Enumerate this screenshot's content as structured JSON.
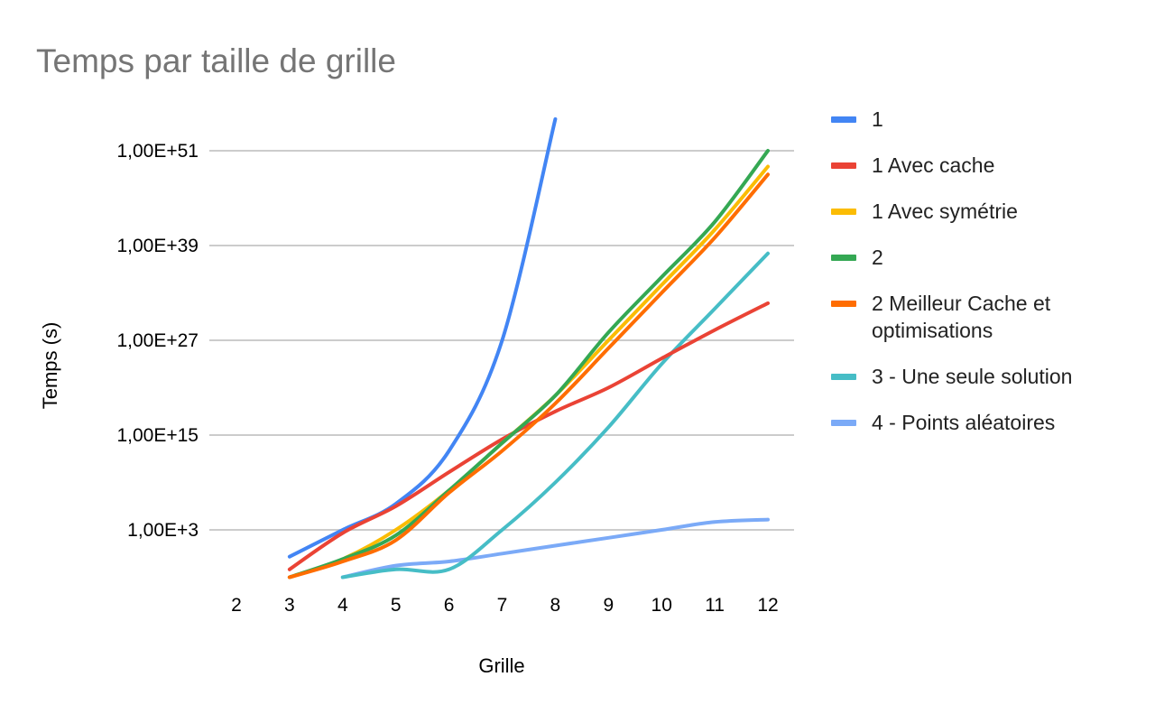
{
  "chart_data": {
    "type": "line",
    "title": "Temps par taille de grille",
    "xlabel": "Grille",
    "ylabel": "Temps (s)",
    "y_scale": "log",
    "categories": [
      "2",
      "3",
      "4",
      "5",
      "6",
      "7",
      "8",
      "9",
      "10",
      "11",
      "12"
    ],
    "y_ticks": [
      {
        "value": 1000.0,
        "label": "1,00E+3"
      },
      {
        "value": 1000000000000000.0,
        "label": "1,00E+15"
      },
      {
        "value": 1e+27,
        "label": "1,00E+27"
      },
      {
        "value": 1e+39,
        "label": "1,00E+39"
      },
      {
        "value": 1e+51,
        "label": "1,00E+51"
      }
    ],
    "grid": true,
    "legend_position": "right",
    "series": [
      {
        "name": "1",
        "color": "#4285f4",
        "values": [
          null,
          0.4,
          1000.0,
          2000000.0,
          10000000000000.0,
          1e+27,
          1e+55,
          null,
          null,
          null,
          null
        ]
      },
      {
        "name": "1 Avec cache",
        "color": "#ea4335",
        "values": [
          null,
          0.01,
          400.0,
          1000000.0,
          20000000000.0,
          300000000000000.0,
          1e+18,
          1e+21,
          5e+24,
          2e+28,
          5e+31
        ]
      },
      {
        "name": "1 Avec symétrie",
        "color": "#fbbc04",
        "values": [
          null,
          0.001,
          0.2,
          1000.0,
          100000000.0,
          100000000000000.0,
          1e+20,
          1e+27,
          1e+34,
          1e+41,
          1e+49
        ]
      },
      {
        "name": "2",
        "color": "#34a853",
        "values": [
          null,
          0.001,
          0.2,
          200.0,
          100000000.0,
          100000000000000.0,
          1e+20,
          1e+28,
          1e+35,
          1e+42,
          1e+51
        ]
      },
      {
        "name": "2 Meilleur Cache et optimisations",
        "color": "#ff6d01",
        "values": [
          null,
          0.001,
          0.1,
          50.0,
          50000000.0,
          10000000000000.0,
          1e+19,
          1e+26,
          1e+33,
          1e+40,
          1e+48
        ]
      },
      {
        "name": "3 - Une seule solution",
        "color": "#46bdc6",
        "values": [
          null,
          null,
          0.001,
          0.01,
          0.01,
          1000.0,
          1000000000.0,
          1e+16,
          1e+24,
          1e+31,
          1e+38
        ]
      },
      {
        "name": "4 - Points aléatoires",
        "color": "#7baaf7",
        "values": [
          null,
          null,
          0.001,
          0.03,
          0.1,
          1.0,
          10.0,
          100.0,
          1000.0,
          10000.0,
          20000.0
        ]
      }
    ]
  }
}
